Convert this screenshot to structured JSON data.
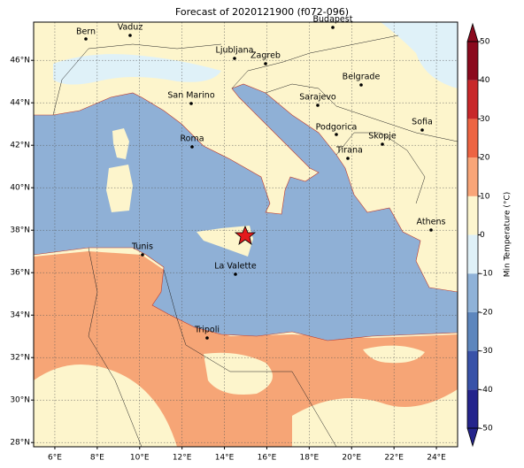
{
  "title": "Forecast of 2020121900 (f072-096)",
  "cities": [
    "Bern",
    "Vaduz",
    "Budapest",
    "Ljubljana",
    "Zagreb",
    "Belgrade",
    "San Marino",
    "Sarajevo",
    "Sofia",
    "Podgorica",
    "Skopje",
    "Roma",
    "Tirana",
    "Athens",
    "Tunis",
    "La Valette",
    "Tripoli"
  ],
  "map": {
    "xlim": [
      5,
      25
    ],
    "ylim": [
      27.8,
      47.8
    ],
    "xticks": [
      {
        "value": 6,
        "label": "6°E"
      },
      {
        "value": 8,
        "label": "8°E"
      },
      {
        "value": 10,
        "label": "10°E"
      },
      {
        "value": 12,
        "label": "12°E"
      },
      {
        "value": 14,
        "label": "14°E"
      },
      {
        "value": 16,
        "label": "16°E"
      },
      {
        "value": 18,
        "label": "18°E"
      },
      {
        "value": 20,
        "label": "20°E"
      },
      {
        "value": 22,
        "label": "22°E"
      },
      {
        "value": 24,
        "label": "24°E"
      }
    ],
    "yticks": [
      {
        "value": 28,
        "label": "28°N"
      },
      {
        "value": 30,
        "label": "30°N"
      },
      {
        "value": 32,
        "label": "32°N"
      },
      {
        "value": 34,
        "label": "34°N"
      },
      {
        "value": 36,
        "label": "36°N"
      },
      {
        "value": 38,
        "label": "38°N"
      },
      {
        "value": 40,
        "label": "40°N"
      },
      {
        "value": 42,
        "label": "42°N"
      },
      {
        "value": 44,
        "label": "44°N"
      },
      {
        "value": 46,
        "label": "46°N"
      }
    ],
    "grid": true
  },
  "colorbar": {
    "label": "Min Temperature (°C)",
    "ticks": [
      -50,
      -40,
      -30,
      -20,
      -10,
      0,
      10,
      20,
      30,
      40,
      50
    ],
    "colors": [
      "#24248c",
      "#3852a8",
      "#5d86bd",
      "#8fb2d8",
      "#dff1f8",
      "#fdf6cf",
      "#f9a578",
      "#ed6442",
      "#c8282a",
      "#8b0a1e"
    ]
  }
}
